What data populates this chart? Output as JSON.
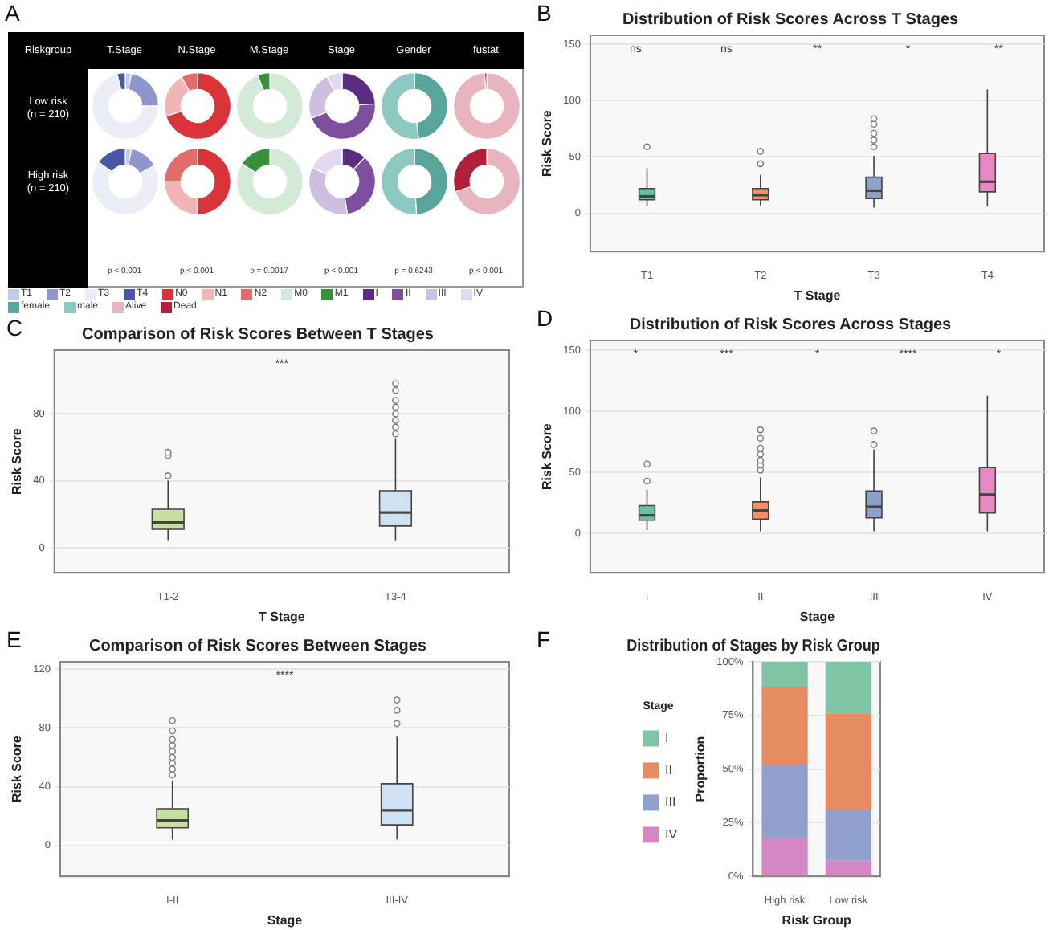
{
  "chart_data": [
    {
      "type": "other",
      "annotations": [
        "A",
        "Riskgroup",
        "Low risk\n(n = 210)",
        "High risk\n(n = 210)"
      ]
    },
    {
      "type": "donut",
      "title": "T.Stage",
      "categories": [
        "T1",
        "T2",
        "T3",
        "T4"
      ],
      "colors": [
        "#c5c9e8",
        "#8f96cc",
        "#eceef7",
        "#4b56a8"
      ],
      "legend": "bottom",
      "annotations": [
        "p < 0.001"
      ],
      "series": [
        {
          "values": [
            3,
            22,
            71,
            4
          ]
        },
        {
          "values": [
            3,
            14,
            68,
            15
          ]
        }
      ]
    },
    {
      "type": "donut",
      "title": "N.Stage",
      "categories": [
        "N0",
        "N1",
        "N2"
      ],
      "colors": [
        "#d9343a",
        "#f2b5b5",
        "#e46b6b"
      ],
      "legend": "bottom",
      "annotations": [
        "p < 0.001"
      ],
      "series": [
        {
          "values": [
            70,
            22,
            8
          ]
        },
        {
          "values": [
            50,
            25,
            25
          ]
        }
      ]
    },
    {
      "type": "donut",
      "title": "M.Stage",
      "categories": [
        "M0",
        "M1"
      ],
      "colors": [
        "#d3ead8",
        "#3a8f3a"
      ],
      "legend": "bottom",
      "annotations": [
        "p = 0.0017"
      ],
      "series": [
        {
          "values": [
            94,
            6
          ]
        },
        {
          "values": [
            84,
            16
          ]
        }
      ]
    },
    {
      "type": "donut",
      "title": "Stage",
      "categories": [
        "I",
        "II",
        "III",
        "IV"
      ],
      "colors": [
        "#5a2d82",
        "#7f4f9f",
        "#cdbfe0",
        "#e3d8ee"
      ],
      "legend": "bottom",
      "annotations": [
        "p < 0.001"
      ],
      "series": [
        {
          "values": [
            24,
            45,
            23.5,
            7.5
          ]
        },
        {
          "values": [
            12,
            35.5,
            34.5,
            18
          ]
        }
      ]
    },
    {
      "type": "donut",
      "title": "Gender",
      "categories": [
        "female",
        "male"
      ],
      "colors": [
        "#5aa59b",
        "#8cc9c0"
      ],
      "legend": "bottom",
      "annotations": [
        "p = 0.6243"
      ],
      "series": [
        {
          "values": [
            48,
            52
          ]
        },
        {
          "values": [
            49,
            51
          ]
        }
      ]
    },
    {
      "type": "donut",
      "title": "fustat",
      "categories": [
        "Alive",
        "Dead"
      ],
      "colors": [
        "#e8b4bd",
        "#b0203a"
      ],
      "legend": "bottom",
      "annotations": [
        "p < 0.001"
      ],
      "series": [
        {
          "values": [
            99,
            1
          ]
        },
        {
          "values": [
            70,
            30
          ]
        }
      ]
    },
    {
      "type": "box",
      "title": "Distribution of Risk Scores Across T Stages",
      "xlabel": "T Stage",
      "ylabel": "Risk Score",
      "categories": [
        "T1",
        "T2",
        "T3",
        "T4"
      ],
      "colors": [
        "#66c2a5",
        "#fc8d62",
        "#8da0cb",
        "#e78ac3"
      ],
      "boxes": [
        {
          "low": 6,
          "q1": 12,
          "median": 15,
          "q3": 22,
          "high": 40,
          "outliers": [
            59
          ]
        },
        {
          "low": 7,
          "q1": 12,
          "median": 16,
          "q3": 22,
          "high": 34,
          "outliers": [
            44,
            55
          ]
        },
        {
          "low": 5,
          "q1": 13,
          "median": 20,
          "q3": 32,
          "high": 51,
          "outliers": [
            59,
            65,
            71,
            79,
            84
          ]
        },
        {
          "low": 6,
          "q1": 19,
          "median": 28,
          "q3": 53,
          "high": 110
        }
      ],
      "ylim": [
        -34,
        158
      ],
      "yticks": [
        0,
        50,
        100,
        150
      ],
      "grid": "y",
      "annotations": [
        "B",
        "ns",
        "ns",
        "**",
        "*",
        "**"
      ]
    },
    {
      "type": "box",
      "title": "Comparison of Risk Scores Between T Stages",
      "xlabel": "T Stage",
      "ylabel": "Risk Score",
      "categories": [
        "T1-2",
        "T3-4"
      ],
      "colors": [
        "#c6e0a4",
        "#cfe1f2"
      ],
      "boxes": [
        {
          "low": 4,
          "q1": 11,
          "median": 15,
          "q3": 23,
          "high": 40,
          "outliers": [
            43,
            55,
            57
          ]
        },
        {
          "low": 4,
          "q1": 13,
          "median": 21,
          "q3": 34,
          "high": 65,
          "outliers": [
            68,
            72,
            76,
            80,
            84,
            88,
            94,
            98
          ]
        }
      ],
      "ylim": [
        -15,
        118
      ],
      "yticks": [
        0,
        40,
        80
      ],
      "grid": "y",
      "annotations": [
        "C",
        "***"
      ]
    },
    {
      "type": "box",
      "title": "Distribution of Risk Scores Across Stages",
      "xlabel": "Stage",
      "ylabel": "Risk Score",
      "categories": [
        "I",
        "II",
        "III",
        "IV"
      ],
      "colors": [
        "#66c2a5",
        "#fc8d62",
        "#8da0cb",
        "#e78ac3"
      ],
      "boxes": [
        {
          "low": 3,
          "q1": 11,
          "median": 15,
          "q3": 23,
          "high": 36,
          "outliers": [
            43,
            57
          ]
        },
        {
          "low": 2,
          "q1": 12,
          "median": 19,
          "q3": 26,
          "high": 46,
          "outliers": [
            52,
            56,
            60,
            65,
            70,
            78,
            85
          ]
        },
        {
          "low": 2,
          "q1": 13,
          "median": 22,
          "q3": 35,
          "high": 69,
          "outliers": [
            73,
            84
          ]
        },
        {
          "low": 2,
          "q1": 17,
          "median": 32,
          "q3": 54,
          "high": 113
        }
      ],
      "ylim": [
        -32,
        158
      ],
      "yticks": [
        0,
        50,
        100,
        150
      ],
      "grid": "y",
      "annotations": [
        "D",
        "*",
        "***",
        "*",
        "****",
        "*"
      ]
    },
    {
      "type": "box",
      "title": "Comparison of Risk Scores Between Stages",
      "xlabel": "Stage",
      "ylabel": "Risk Score",
      "categories": [
        "I-II",
        "III-IV"
      ],
      "colors": [
        "#c6e0a4",
        "#cfe1f2"
      ],
      "boxes": [
        {
          "low": 4,
          "q1": 12,
          "median": 17,
          "q3": 25,
          "high": 44,
          "outliers": [
            48,
            52,
            56,
            60,
            64,
            68,
            72,
            78,
            85
          ]
        },
        {
          "low": 4,
          "q1": 14,
          "median": 24,
          "q3": 42,
          "high": 74,
          "outliers": [
            83,
            92,
            99
          ]
        }
      ],
      "ylim": [
        -21,
        125
      ],
      "yticks": [
        0,
        40,
        80,
        120
      ],
      "grid": "y",
      "annotations": [
        "E",
        "****"
      ]
    },
    {
      "type": "bar",
      "stacked": true,
      "title": "Distribution of Stages by Risk Group",
      "xlabel": "Risk Group",
      "ylabel": "Proportion",
      "legend_title": "Stage",
      "legend": "left",
      "categories": [
        "High risk",
        "Low risk"
      ],
      "series": [
        {
          "name": "IV",
          "color": "#d488c3",
          "values": [
            18,
            7.5
          ]
        },
        {
          "name": "III",
          "color": "#909fcb",
          "values": [
            34.5,
            23.5
          ]
        },
        {
          "name": "II",
          "color": "#e68c62",
          "values": [
            35.5,
            45
          ]
        },
        {
          "name": "I",
          "color": "#7fc4a4",
          "values": [
            12,
            24
          ]
        }
      ],
      "ylim": [
        0,
        100
      ],
      "yticks": [
        {
          "value": 0,
          "label": "0%"
        },
        {
          "value": 25,
          "label": "25%"
        },
        {
          "value": 50,
          "label": "50%"
        },
        {
          "value": 75,
          "label": "75%"
        },
        {
          "value": 100,
          "label": "100%"
        }
      ],
      "grid": "y",
      "annotations": [
        "F"
      ]
    }
  ]
}
